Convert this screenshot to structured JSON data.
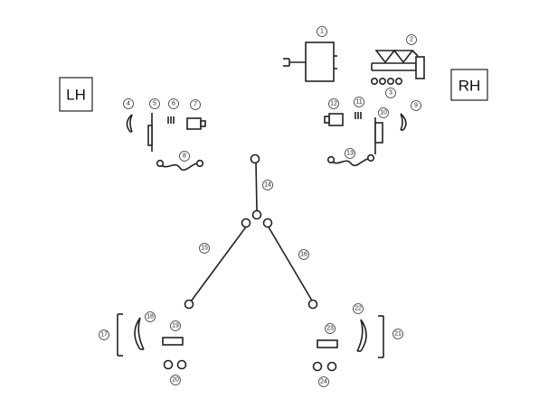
{
  "side_labels": {
    "left": "LH",
    "right": "RH"
  },
  "callouts": [
    "1",
    "2",
    "3",
    "4",
    "5",
    "6",
    "7",
    "8",
    "9",
    "10",
    "11",
    "12",
    "13",
    "14",
    "15",
    "16",
    "17",
    "18",
    "19",
    "20",
    "21",
    "22",
    "23",
    "24"
  ]
}
